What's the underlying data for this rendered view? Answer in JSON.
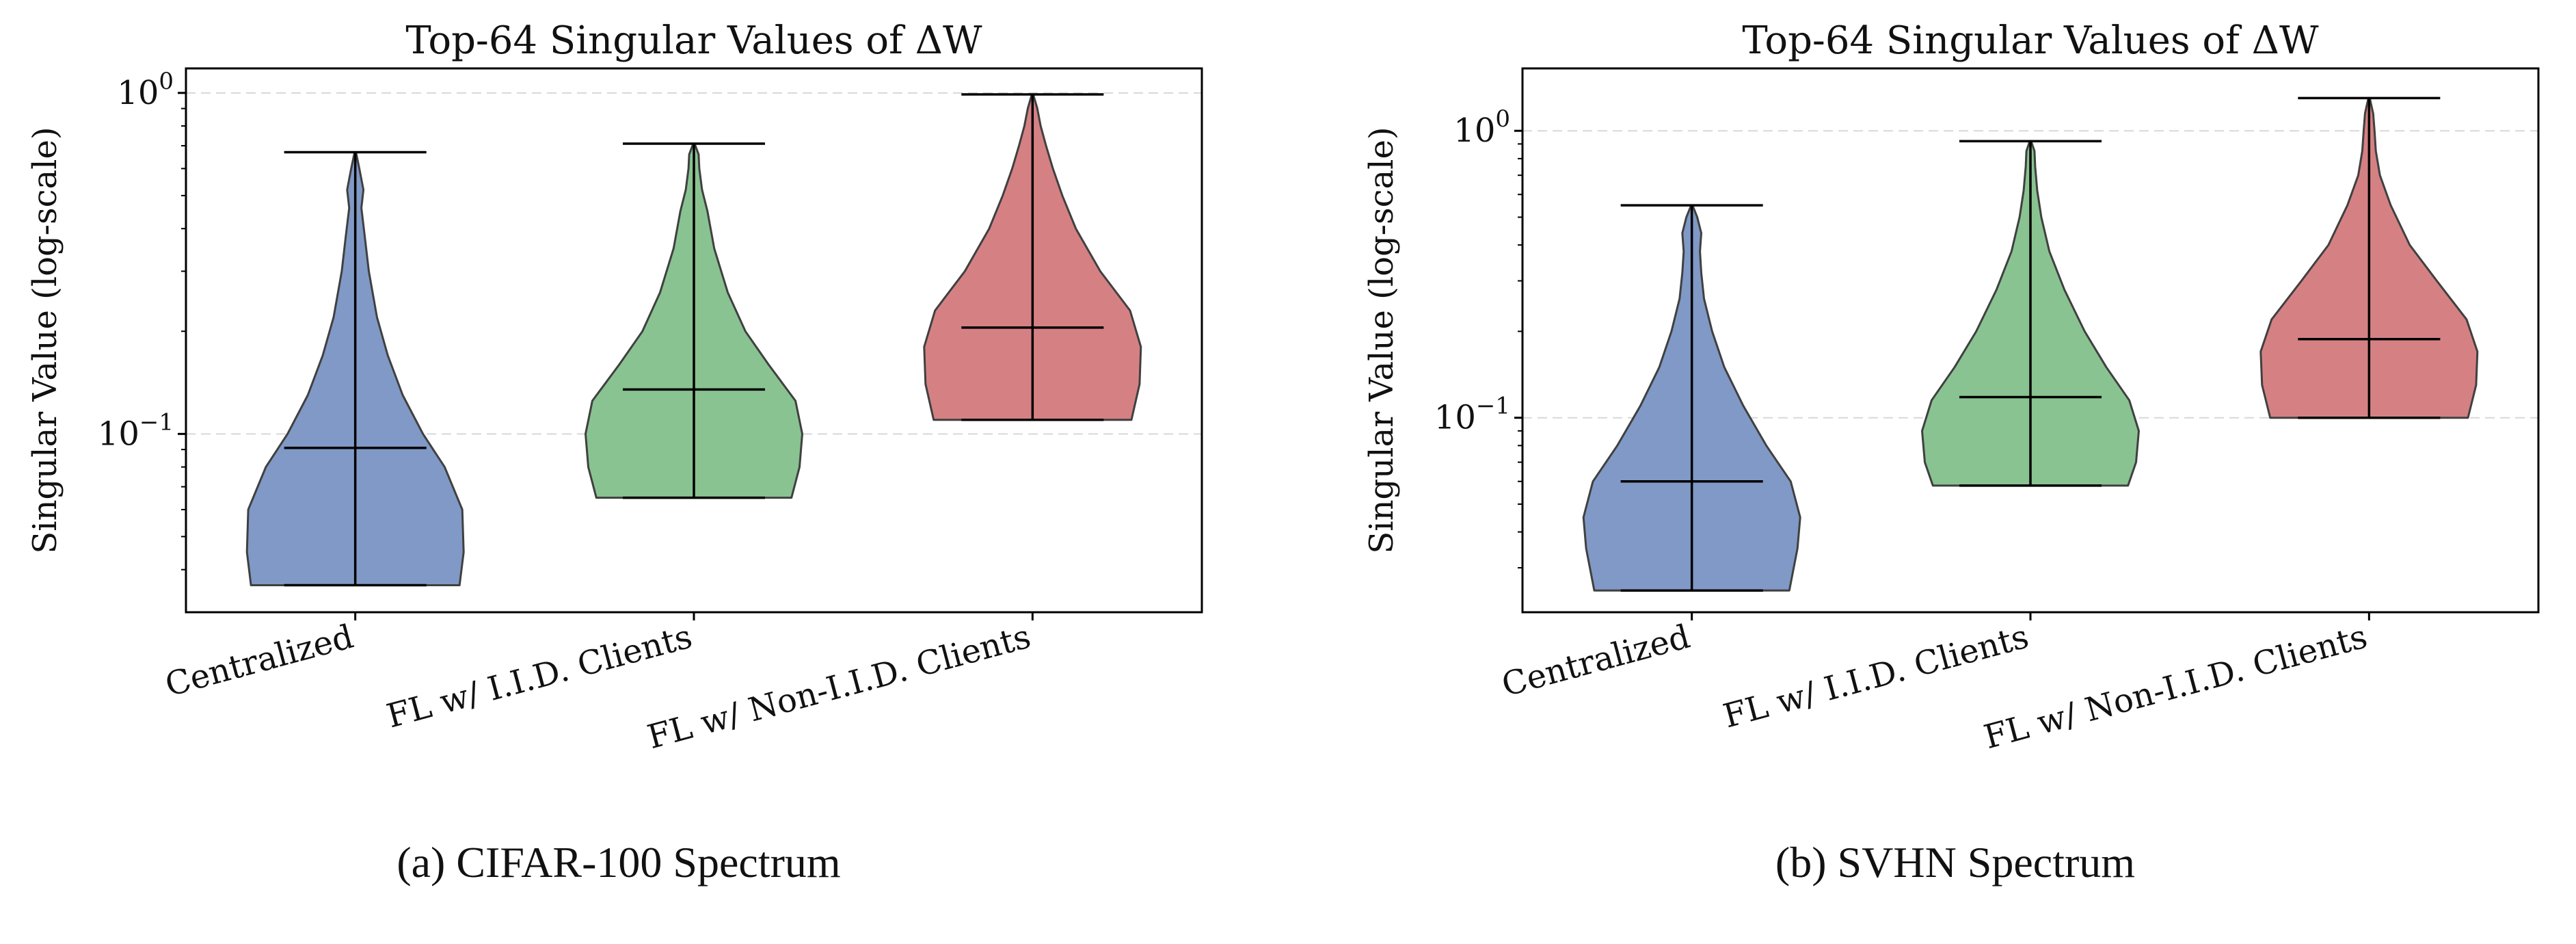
{
  "figure": {
    "captions": [
      "(a) CIFAR-100 Spectrum",
      "(b) SVHN Spectrum"
    ]
  },
  "colors": {
    "Centralized": "#8099c6",
    "FL w/ I.I.D. Clients": "#89c391",
    "FL w/ Non-I.I.D. Clients": "#d58184",
    "outline": "#404040",
    "grid": "#d8d8d8"
  },
  "chart_data": [
    {
      "type": "violin",
      "title": "Top-64 Singular Values of ΔW",
      "ylabel": "Singular Value (log-scale)",
      "yscale": "log",
      "ylim": [
        0.03,
        1.18
      ],
      "yticks": [
        {
          "value": 0.1,
          "base": "10",
          "exp": "−1"
        },
        {
          "value": 1,
          "base": "10",
          "exp": "0"
        }
      ],
      "grid": "horizontal-dashed",
      "categories": [
        "Centralized",
        "FL w/ I.I.D. Clients",
        "FL w/ Non-I.I.D. Clients"
      ],
      "series": [
        {
          "category": "Centralized",
          "min": 0.036,
          "median": 0.091,
          "max": 0.67,
          "profile": [
            [
              0.036,
              0.77
            ],
            [
              0.045,
              0.8
            ],
            [
              0.06,
              0.79
            ],
            [
              0.08,
              0.66
            ],
            [
              0.1,
              0.5
            ],
            [
              0.13,
              0.35
            ],
            [
              0.17,
              0.24
            ],
            [
              0.22,
              0.16
            ],
            [
              0.3,
              0.1
            ],
            [
              0.38,
              0.07
            ],
            [
              0.46,
              0.045
            ],
            [
              0.52,
              0.06
            ],
            [
              0.6,
              0.03
            ],
            [
              0.67,
              0.005
            ]
          ]
        },
        {
          "category": "FL w/ I.I.D. Clients",
          "min": 0.065,
          "median": 0.135,
          "max": 0.71,
          "profile": [
            [
              0.065,
              0.72
            ],
            [
              0.08,
              0.78
            ],
            [
              0.1,
              0.8
            ],
            [
              0.125,
              0.75
            ],
            [
              0.16,
              0.55
            ],
            [
              0.2,
              0.38
            ],
            [
              0.26,
              0.25
            ],
            [
              0.35,
              0.15
            ],
            [
              0.45,
              0.1
            ],
            [
              0.52,
              0.06
            ],
            [
              0.6,
              0.04
            ],
            [
              0.66,
              0.035
            ],
            [
              0.71,
              0.005
            ]
          ]
        },
        {
          "category": "FL w/ Non-I.I.D. Clients",
          "min": 0.11,
          "median": 0.205,
          "max": 0.99,
          "profile": [
            [
              0.11,
              0.73
            ],
            [
              0.14,
              0.79
            ],
            [
              0.18,
              0.8
            ],
            [
              0.23,
              0.72
            ],
            [
              0.3,
              0.5
            ],
            [
              0.4,
              0.32
            ],
            [
              0.5,
              0.22
            ],
            [
              0.6,
              0.15
            ],
            [
              0.7,
              0.1
            ],
            [
              0.8,
              0.06
            ],
            [
              0.9,
              0.035
            ],
            [
              0.99,
              0.005
            ]
          ]
        }
      ]
    },
    {
      "type": "violin",
      "title": "Top-64 Singular Values of ΔW",
      "ylabel": "Singular Value (log-scale)",
      "yscale": "log",
      "ylim": [
        0.021,
        1.65
      ],
      "yticks": [
        {
          "value": 0.1,
          "base": "10",
          "exp": "−1"
        },
        {
          "value": 1,
          "base": "10",
          "exp": "0"
        }
      ],
      "grid": "horizontal-dashed",
      "categories": [
        "Centralized",
        "FL w/ I.I.D. Clients",
        "FL w/ Non-I.I.D. Clients"
      ],
      "series": [
        {
          "category": "Centralized",
          "min": 0.025,
          "median": 0.06,
          "max": 0.55,
          "profile": [
            [
              0.025,
              0.72
            ],
            [
              0.035,
              0.78
            ],
            [
              0.045,
              0.8
            ],
            [
              0.06,
              0.73
            ],
            [
              0.08,
              0.55
            ],
            [
              0.11,
              0.38
            ],
            [
              0.15,
              0.24
            ],
            [
              0.2,
              0.15
            ],
            [
              0.26,
              0.09
            ],
            [
              0.32,
              0.07
            ],
            [
              0.38,
              0.06
            ],
            [
              0.44,
              0.07
            ],
            [
              0.5,
              0.04
            ],
            [
              0.55,
              0.005
            ]
          ]
        },
        {
          "category": "FL w/ I.I.D. Clients",
          "min": 0.058,
          "median": 0.118,
          "max": 0.92,
          "profile": [
            [
              0.058,
              0.72
            ],
            [
              0.07,
              0.78
            ],
            [
              0.09,
              0.8
            ],
            [
              0.115,
              0.73
            ],
            [
              0.15,
              0.56
            ],
            [
              0.2,
              0.4
            ],
            [
              0.28,
              0.25
            ],
            [
              0.38,
              0.14
            ],
            [
              0.5,
              0.08
            ],
            [
              0.62,
              0.05
            ],
            [
              0.75,
              0.035
            ],
            [
              0.85,
              0.03
            ],
            [
              0.92,
              0.005
            ]
          ]
        },
        {
          "category": "FL w/ Non-I.I.D. Clients",
          "min": 0.1,
          "median": 0.188,
          "max": 1.3,
          "profile": [
            [
              0.1,
              0.73
            ],
            [
              0.13,
              0.79
            ],
            [
              0.17,
              0.8
            ],
            [
              0.22,
              0.72
            ],
            [
              0.3,
              0.5
            ],
            [
              0.4,
              0.3
            ],
            [
              0.55,
              0.16
            ],
            [
              0.7,
              0.08
            ],
            [
              0.85,
              0.05
            ],
            [
              1.0,
              0.04
            ],
            [
              1.15,
              0.03
            ],
            [
              1.3,
              0.005
            ]
          ]
        }
      ]
    }
  ]
}
